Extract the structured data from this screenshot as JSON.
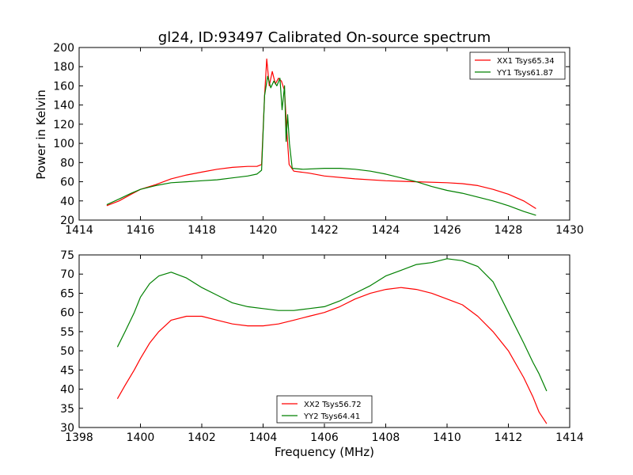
{
  "chart_data": [
    {
      "type": "line",
      "title": "gl24, ID:93497 Calibrated On-source spectrum",
      "xlabel": "",
      "ylabel": "Power in Kelvin",
      "xlim": [
        1414,
        1430
      ],
      "ylim": [
        20,
        200
      ],
      "xticks": [
        1414,
        1416,
        1418,
        1420,
        1422,
        1424,
        1426,
        1428,
        1430
      ],
      "yticks": [
        20,
        40,
        60,
        80,
        100,
        120,
        140,
        160,
        180,
        200
      ],
      "legend_position": "top-right",
      "grid": false,
      "series": [
        {
          "name": "XX1 Tsys65.34",
          "color": "#ff0000",
          "x": [
            1414.9,
            1415.3,
            1415.7,
            1416.0,
            1416.5,
            1417.0,
            1417.5,
            1418.0,
            1418.5,
            1419.0,
            1419.5,
            1419.8,
            1419.95,
            1420.05,
            1420.12,
            1420.2,
            1420.3,
            1420.4,
            1420.5,
            1420.6,
            1420.7,
            1420.78,
            1420.85,
            1421.0,
            1421.5,
            1422.0,
            1423.0,
            1424.0,
            1425.0,
            1426.0,
            1426.5,
            1427.0,
            1427.5,
            1428.0,
            1428.5,
            1428.9
          ],
          "y": [
            35,
            40,
            47,
            52,
            57,
            63,
            67,
            70,
            73,
            75,
            76,
            76,
            78,
            150,
            188,
            160,
            175,
            162,
            168,
            165,
            155,
            110,
            78,
            71,
            69,
            66,
            63,
            61,
            60,
            59,
            58,
            56,
            52,
            47,
            40,
            32
          ]
        },
        {
          "name": "YY1 Tsys61.87",
          "color": "#008000",
          "x": [
            1414.9,
            1415.3,
            1415.7,
            1416.0,
            1416.5,
            1417.0,
            1417.5,
            1418.0,
            1418.5,
            1419.0,
            1419.5,
            1419.8,
            1419.95,
            1420.05,
            1420.15,
            1420.25,
            1420.35,
            1420.45,
            1420.55,
            1420.62,
            1420.7,
            1420.75,
            1420.8,
            1420.86,
            1420.95,
            1421.3,
            1422.0,
            1422.5,
            1423.0,
            1423.5,
            1424.0,
            1424.5,
            1425.0,
            1425.5,
            1426.0,
            1426.5,
            1427.0,
            1427.5,
            1428.0,
            1428.5,
            1428.9
          ],
          "y": [
            36,
            42,
            48,
            52,
            56,
            59,
            60,
            61,
            62,
            64,
            66,
            68,
            72,
            150,
            170,
            158,
            165,
            160,
            168,
            135,
            160,
            102,
            130,
            100,
            74,
            73,
            74,
            74,
            73,
            71,
            68,
            64,
            60,
            55,
            51,
            48,
            44,
            40,
            35,
            29,
            25
          ]
        }
      ]
    },
    {
      "type": "line",
      "title": "",
      "xlabel": "Frequency (MHz)",
      "ylabel": "",
      "xlim": [
        1398,
        1414
      ],
      "ylim": [
        30,
        75
      ],
      "xticks": [
        1398,
        1400,
        1402,
        1404,
        1406,
        1408,
        1410,
        1412,
        1414
      ],
      "yticks": [
        30,
        35,
        40,
        45,
        50,
        55,
        60,
        65,
        70,
        75
      ],
      "legend_position": "bottom-center",
      "grid": false,
      "series": [
        {
          "name": "XX2 Tsys56.72",
          "color": "#ff0000",
          "x": [
            1399.25,
            1399.5,
            1399.8,
            1400.0,
            1400.3,
            1400.6,
            1401.0,
            1401.5,
            1402.0,
            1402.5,
            1403.0,
            1403.5,
            1404.0,
            1404.5,
            1405.0,
            1405.5,
            1406.0,
            1406.5,
            1407.0,
            1407.5,
            1408.0,
            1408.5,
            1409.0,
            1409.5,
            1410.0,
            1410.5,
            1411.0,
            1411.5,
            1412.0,
            1412.5,
            1412.8,
            1413.0,
            1413.25
          ],
          "y": [
            37.5,
            41,
            45,
            48,
            52,
            55,
            58,
            59,
            59,
            58,
            57,
            56.5,
            56.5,
            57,
            58,
            59,
            60,
            61.5,
            63.5,
            65,
            66,
            66.5,
            66,
            65,
            63.5,
            62,
            59,
            55,
            50,
            43,
            38,
            34,
            31
          ]
        },
        {
          "name": "YY2 Tsys64.41",
          "color": "#008000",
          "x": [
            1399.25,
            1399.5,
            1399.8,
            1400.0,
            1400.3,
            1400.6,
            1401.0,
            1401.5,
            1402.0,
            1402.5,
            1403.0,
            1403.5,
            1404.0,
            1404.5,
            1405.0,
            1405.5,
            1406.0,
            1406.5,
            1407.0,
            1407.5,
            1408.0,
            1408.5,
            1409.0,
            1409.5,
            1410.0,
            1410.5,
            1411.0,
            1411.5,
            1412.0,
            1412.5,
            1412.8,
            1413.0,
            1413.25
          ],
          "y": [
            51,
            55,
            60,
            64,
            67.5,
            69.5,
            70.5,
            69,
            66.5,
            64.5,
            62.5,
            61.5,
            61,
            60.5,
            60.5,
            61,
            61.5,
            63,
            65,
            67,
            69.5,
            71,
            72.5,
            73,
            74,
            73.5,
            72,
            68,
            60,
            52,
            47,
            44,
            39.5
          ]
        }
      ]
    }
  ]
}
